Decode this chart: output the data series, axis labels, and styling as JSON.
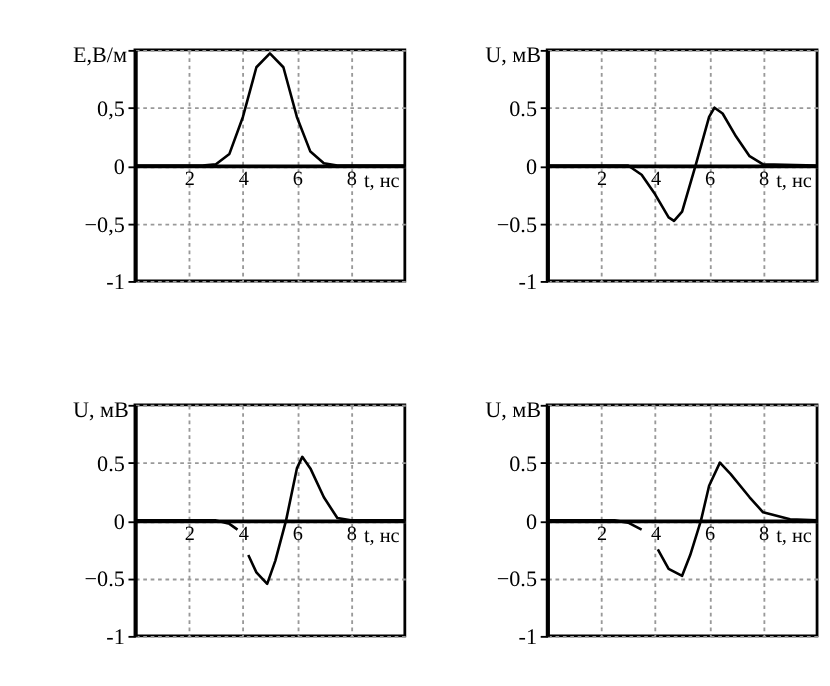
{
  "chart_data": [
    {
      "type": "line",
      "xlabel": "t, нс",
      "ylabel": "E,В/м",
      "xlim": [
        0,
        10
      ],
      "ylim": [
        -1,
        1
      ],
      "xticks": [
        2,
        4,
        6,
        8
      ],
      "yticks": [
        -1,
        {
          "value": -0.5,
          "label": "−0,5"
        },
        0,
        {
          "value": 0.5,
          "label": "0,5"
        },
        {
          "value": 1,
          "label": null
        }
      ],
      "grid": true,
      "x": [
        0,
        2.5,
        3,
        3.5,
        4,
        4.5,
        5,
        5.5,
        6,
        6.5,
        7,
        7.5,
        10
      ],
      "series": [
        {
          "color": "#000000",
          "values": [
            0,
            0,
            0.01,
            0.1,
            0.42,
            0.85,
            0.97,
            0.85,
            0.42,
            0.12,
            0.02,
            0,
            0
          ]
        }
      ]
    },
    {
      "type": "line",
      "xlabel": "t, нс",
      "ylabel": "U, мВ",
      "xlim": [
        0,
        10
      ],
      "ylim": [
        -1,
        1
      ],
      "xticks": [
        2,
        4,
        6,
        8
      ],
      "yticks": [
        -1,
        {
          "value": -0.5,
          "label": "−0.5"
        },
        0,
        {
          "value": 0.5,
          "label": "0.5"
        },
        {
          "value": 1,
          "label": null
        }
      ],
      "grid": true,
      "x": [
        0,
        3,
        3.5,
        4,
        4.5,
        4.7,
        5,
        5.5,
        6,
        6.2,
        6.5,
        7,
        7.5,
        8,
        10
      ],
      "series": [
        {
          "color": "#000000",
          "values": [
            0,
            0,
            -0.08,
            -0.25,
            -0.45,
            -0.48,
            -0.4,
            0,
            0.42,
            0.5,
            0.45,
            0.25,
            0.08,
            0.01,
            0
          ]
        }
      ]
    },
    {
      "type": "line",
      "xlabel": "t, нс",
      "ylabel": "U, мВ",
      "xlim": [
        0,
        10
      ],
      "ylim": [
        -1,
        1
      ],
      "xticks": [
        2,
        4,
        6,
        8
      ],
      "yticks": [
        -1,
        {
          "value": -0.5,
          "label": "−0.5"
        },
        0,
        {
          "value": 0.5,
          "label": "0.5"
        },
        {
          "value": 1,
          "label": null
        }
      ],
      "grid": true,
      "x": [
        0,
        3,
        3.5,
        3.8,
        4,
        4.2,
        4.5,
        4.9,
        5.2,
        5.6,
        6,
        6.2,
        6.5,
        7,
        7.5,
        8,
        10
      ],
      "series": [
        {
          "color": "#000000",
          "values": [
            0,
            0,
            -0.03,
            -0.08,
            null,
            -0.3,
            -0.45,
            -0.55,
            -0.35,
            0,
            0.45,
            0.55,
            0.45,
            0.2,
            0.02,
            0,
            0
          ]
        }
      ]
    },
    {
      "type": "line",
      "xlabel": "t, нс",
      "ylabel": "U, мВ",
      "xlim": [
        0,
        10
      ],
      "ylim": [
        -1,
        1
      ],
      "xticks": [
        2,
        4,
        6,
        8
      ],
      "yticks": [
        -1,
        {
          "value": -0.5,
          "label": "−0.5"
        },
        0,
        {
          "value": 0.5,
          "label": "0.5"
        },
        {
          "value": 1,
          "label": null
        }
      ],
      "grid": true,
      "x": [
        0,
        2.5,
        3,
        3.5,
        3.8,
        4.1,
        4.5,
        5,
        5.3,
        5.7,
        6,
        6.4,
        6.8,
        7.5,
        8,
        9,
        10
      ],
      "series": [
        {
          "color": "#000000",
          "values": [
            0,
            0,
            -0.02,
            -0.08,
            null,
            -0.25,
            -0.42,
            -0.48,
            -0.3,
            0,
            0.3,
            0.5,
            0.4,
            0.2,
            0.07,
            0.01,
            0
          ]
        }
      ]
    }
  ]
}
